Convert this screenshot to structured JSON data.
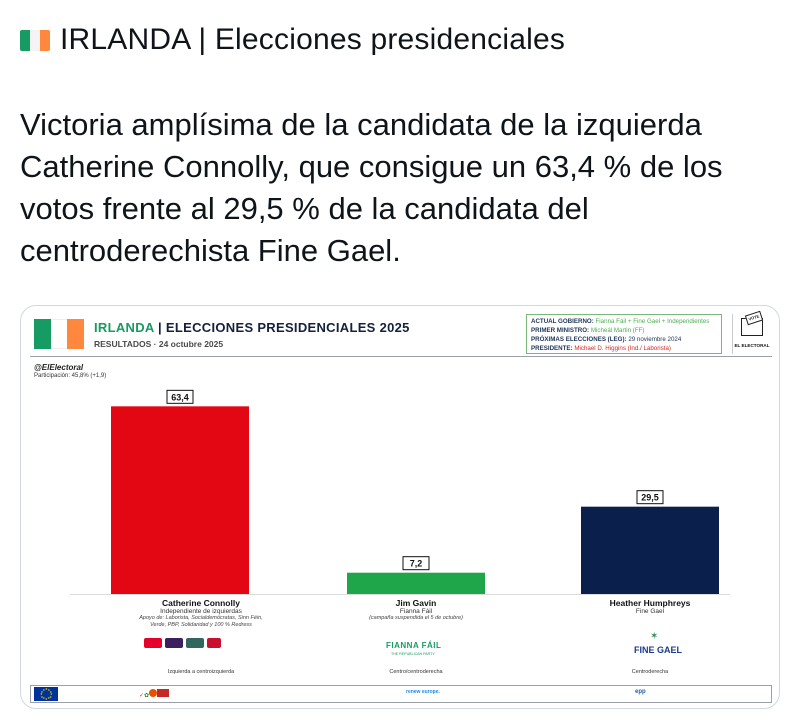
{
  "tweet": {
    "header": "IRLANDA | Elecciones presidenciales",
    "flag_colors": [
      "#169b62",
      "#ffffff",
      "#ff883e"
    ],
    "body": "Victoria amplísima de la candidata de la izquierda Catherine Connolly, que consigue un 63,4 % de los votos frente al 29,5 % de la candidata del centroderechista Fine Gael."
  },
  "graphic": {
    "title_country": "IRLANDA",
    "title_rest": "| ELECCIONES PRESIDENCIALES 2025",
    "subtitle": "RESULTADOS · 24 octubre 2025",
    "info": {
      "gov_label": "ACTUAL GOBIERNO:",
      "gov_value": "Fianna Fáil + Fine Gael + Independientes",
      "pm_label": "PRIMER MINISTRO:",
      "pm_value": "Micheál Martin (FF)",
      "next_label": "PRÓXIMAS ELECCIONES (LEG):",
      "next_value": "29 noviembre 2024",
      "pres_label": "PRESIDENTE:",
      "pres_value": "Michael D. Higgins (Ind./ Laborista)"
    },
    "logo_text": "EL ELECTORAL",
    "ballot_text": "VOTE",
    "handle": "@ElElectoral",
    "turnout": "Participación: 45,8% (+1,9)",
    "fianna_fail_logo": "FIANNA FÁIL",
    "fianna_fail_sub": "THE REPUBLICAN PARTY",
    "fine_gael_logo": "FINE GAEL",
    "renew_logo": "renew europe.",
    "epp_logo": "epp"
  },
  "chart_data": {
    "type": "bar",
    "categories": [
      "Catherine Connolly",
      "Jim Gavin",
      "Heather Humphreys"
    ],
    "values": [
      63.4,
      7.2,
      29.5
    ],
    "value_labels": [
      "63,4",
      "7,2",
      "29,5"
    ],
    "colors": [
      "#e30613",
      "#1fa64a",
      "#0b1f4d"
    ],
    "parties": [
      "Independiente de izquierdas",
      "Fianna Fáil",
      "Fine Gael"
    ],
    "notes": [
      "Apoyo de: Laborista, Socialdemócratas, Sinn Féin, Verde, PBP, Solidaridad y 100 % Redress",
      "(campaña suspendida el 5 de octubre)",
      ""
    ],
    "ideology": [
      "Izquierda a centroizquierda",
      "Centro/centroderecha",
      "Centroderecha"
    ],
    "ylim": [
      0,
      70
    ]
  }
}
